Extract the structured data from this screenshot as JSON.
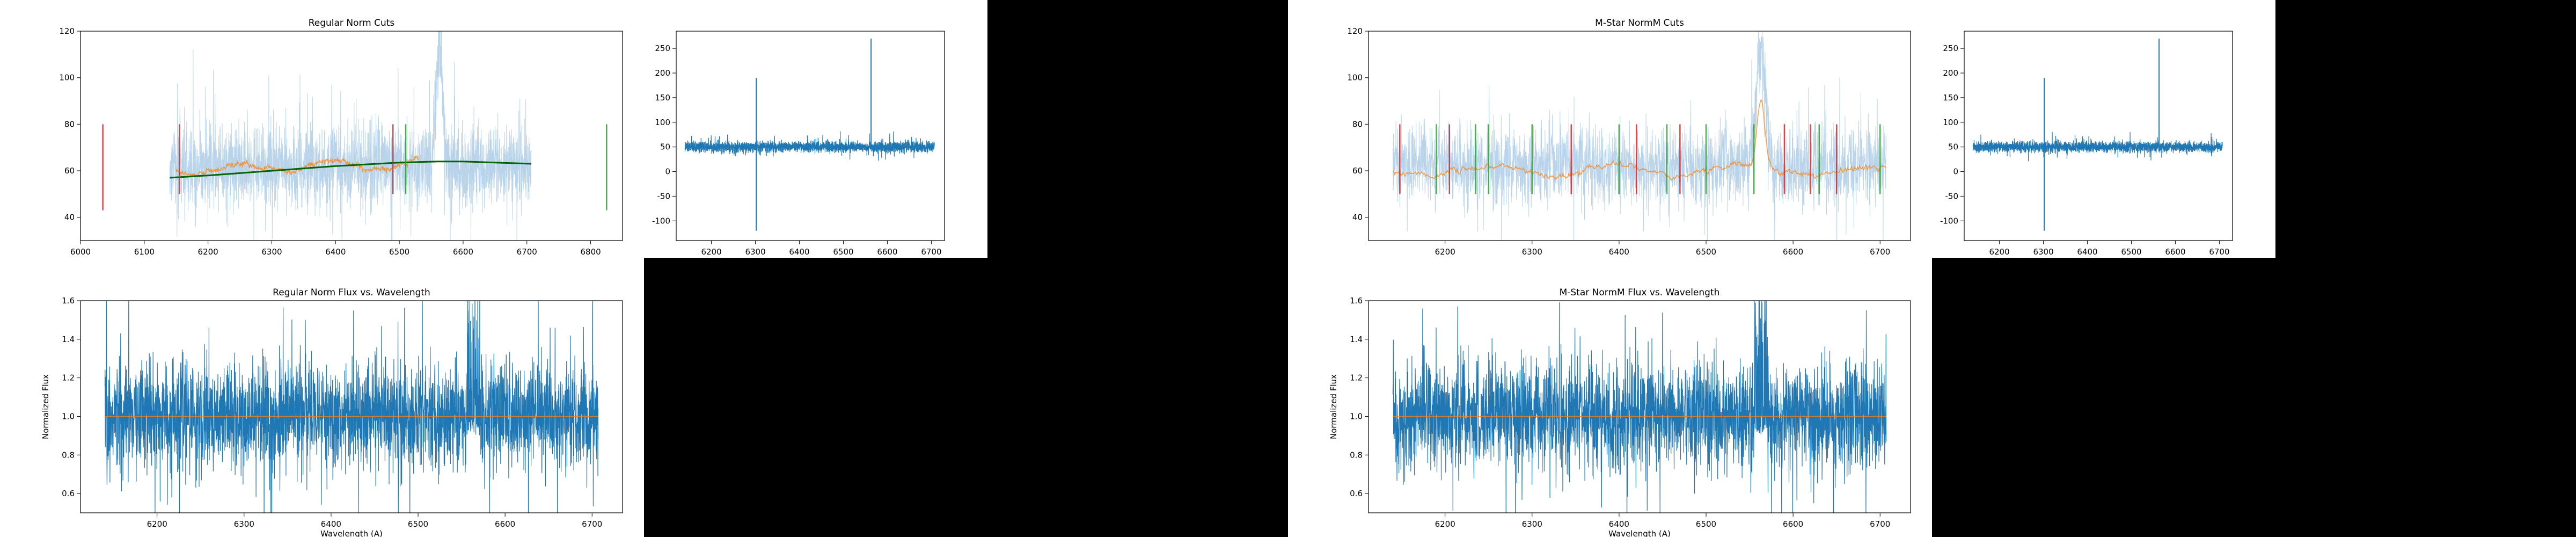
{
  "colors": {
    "figure_bg": "#ffffff",
    "empty_panel": "#000000",
    "series_blue": "#1f77b4",
    "series_light_blue": "#b9d4ea",
    "series_orange": "#ff7f0e",
    "fit_green": "#006400",
    "cut_red": "#d62728",
    "cut_green": "#2ca02c"
  },
  "chart_data": [
    {
      "id": "reg_cuts",
      "type": "line",
      "title": "Regular Norm Cuts",
      "xlabel": "",
      "ylabel": "",
      "xlim": [
        6000,
        6850
      ],
      "ylim": [
        30,
        120
      ],
      "xticks": [
        6000,
        6100,
        6200,
        6300,
        6400,
        6500,
        6600,
        6700,
        6800
      ],
      "yticks": [
        40,
        60,
        80,
        100,
        120
      ],
      "grid": false,
      "noise_trace": {
        "x_range": [
          6140,
          6707
        ],
        "base": 62,
        "spread": 28,
        "emission_at": 6563,
        "emission_peak": 118
      },
      "smoothed_trace": {
        "x_range": [
          6150,
          6530
        ],
        "base": 60,
        "spread": 4
      },
      "fit_curve": {
        "x": [
          6140,
          6200,
          6300,
          6400,
          6500,
          6560,
          6600,
          6707
        ],
        "y": [
          57,
          58,
          60,
          62,
          63.5,
          64,
          64,
          63
        ]
      },
      "cut_lines": [
        {
          "x": 6035,
          "y": [
            43,
            80
          ],
          "color": "red"
        },
        {
          "x": 6155,
          "y": [
            50,
            80
          ],
          "color": "red"
        },
        {
          "x": 6490,
          "y": [
            50,
            80
          ],
          "color": "red"
        },
        {
          "x": 6510,
          "y": [
            50,
            80
          ],
          "color": "green"
        },
        {
          "x": 6825,
          "y": [
            43,
            80
          ],
          "color": "green"
        }
      ]
    },
    {
      "id": "reg_resid",
      "type": "line",
      "title": "",
      "xlabel": "",
      "ylabel": "",
      "xlim": [
        6120,
        6730
      ],
      "ylim": [
        -140,
        285
      ],
      "xticks": [
        6200,
        6300,
        6400,
        6500,
        6600,
        6700
      ],
      "yticks": [
        -100,
        -50,
        0,
        50,
        100,
        150,
        200,
        250
      ],
      "grid": false,
      "noise_trace": {
        "x_range": [
          6140,
          6707
        ],
        "base": 50,
        "spread": 18,
        "spikes": [
          {
            "x": 6302,
            "y": -120
          },
          {
            "x": 6302,
            "y": 190
          },
          {
            "x": 6563,
            "y": 270
          }
        ]
      }
    },
    {
      "id": "reg_flux",
      "type": "line",
      "title": "Regular Norm Flux vs. Wavelength",
      "xlabel": "Wavelength (A)",
      "ylabel": "Normalized Flux",
      "xlim": [
        6112,
        6735
      ],
      "ylim": [
        0.5,
        1.6
      ],
      "xticks": [
        6200,
        6300,
        6400,
        6500,
        6600,
        6700
      ],
      "yticks": [
        0.6,
        0.8,
        1.0,
        1.2,
        1.4,
        1.6
      ],
      "grid": false,
      "noise_trace": {
        "x_range": [
          6140,
          6707
        ],
        "base": 1.0,
        "spread": 0.45
      },
      "reference_line": {
        "y": 1.0
      }
    },
    {
      "id": "m_cuts",
      "type": "line",
      "title": "M-Star NormM Cuts",
      "xlabel": "",
      "ylabel": "",
      "xlim": [
        6112,
        6735
      ],
      "ylim": [
        30,
        120
      ],
      "xticks": [
        6200,
        6300,
        6400,
        6500,
        6600,
        6700
      ],
      "yticks": [
        40,
        60,
        80,
        100,
        120
      ],
      "grid": false,
      "noise_trace": {
        "x_range": [
          6140,
          6707
        ],
        "base": 62,
        "spread": 28,
        "emission_at": 6563,
        "emission_peak": 118
      },
      "smoothed_trace": {
        "x_range": [
          6140,
          6707
        ],
        "base": 60,
        "spread": 5
      },
      "cut_lines": [
        {
          "x": 6148,
          "y": [
            50,
            80
          ],
          "color": "red"
        },
        {
          "x": 6190,
          "y": [
            50,
            80
          ],
          "color": "green"
        },
        {
          "x": 6205,
          "y": [
            50,
            80
          ],
          "color": "red"
        },
        {
          "x": 6235,
          "y": [
            50,
            80
          ],
          "color": "green"
        },
        {
          "x": 6250,
          "y": [
            50,
            80
          ],
          "color": "green"
        },
        {
          "x": 6300,
          "y": [
            50,
            80
          ],
          "color": "green"
        },
        {
          "x": 6345,
          "y": [
            50,
            80
          ],
          "color": "red"
        },
        {
          "x": 6400,
          "y": [
            50,
            80
          ],
          "color": "green"
        },
        {
          "x": 6420,
          "y": [
            50,
            80
          ],
          "color": "red"
        },
        {
          "x": 6455,
          "y": [
            50,
            80
          ],
          "color": "green"
        },
        {
          "x": 6470,
          "y": [
            50,
            80
          ],
          "color": "red"
        },
        {
          "x": 6500,
          "y": [
            50,
            80
          ],
          "color": "green"
        },
        {
          "x": 6555,
          "y": [
            50,
            80
          ],
          "color": "green"
        },
        {
          "x": 6590,
          "y": [
            50,
            80
          ],
          "color": "red"
        },
        {
          "x": 6620,
          "y": [
            50,
            80
          ],
          "color": "red"
        },
        {
          "x": 6630,
          "y": [
            50,
            80
          ],
          "color": "green"
        },
        {
          "x": 6650,
          "y": [
            50,
            80
          ],
          "color": "red"
        },
        {
          "x": 6700,
          "y": [
            50,
            80
          ],
          "color": "green"
        }
      ]
    },
    {
      "id": "m_resid",
      "type": "line",
      "title": "",
      "xlabel": "",
      "ylabel": "",
      "xlim": [
        6120,
        6730
      ],
      "ylim": [
        -140,
        285
      ],
      "xticks": [
        6200,
        6300,
        6400,
        6500,
        6600,
        6700
      ],
      "yticks": [
        -100,
        -50,
        0,
        50,
        100,
        150,
        200,
        250
      ],
      "grid": false,
      "noise_trace": {
        "x_range": [
          6140,
          6707
        ],
        "base": 50,
        "spread": 18,
        "spikes": [
          {
            "x": 6302,
            "y": -120
          },
          {
            "x": 6302,
            "y": 190
          },
          {
            "x": 6563,
            "y": 270
          }
        ]
      }
    },
    {
      "id": "m_flux",
      "type": "line",
      "title": "M-Star NormM Flux vs. Wavelength",
      "xlabel": "Wavelength (A)",
      "ylabel": "Normalized Flux",
      "xlim": [
        6112,
        6735
      ],
      "ylim": [
        0.5,
        1.6
      ],
      "xticks": [
        6200,
        6300,
        6400,
        6500,
        6600,
        6700
      ],
      "yticks": [
        0.6,
        0.8,
        1.0,
        1.2,
        1.4,
        1.6
      ],
      "grid": false,
      "noise_trace": {
        "x_range": [
          6140,
          6707
        ],
        "base": 1.0,
        "spread": 0.45
      },
      "reference_line": {
        "y": 1.0
      }
    }
  ]
}
